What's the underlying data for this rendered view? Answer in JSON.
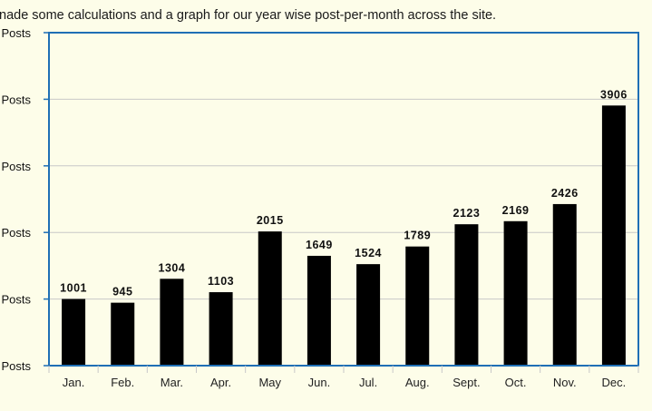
{
  "intro_text": "nade some calculations and a graph for our year wise post-per-month across the site.",
  "chart_data": {
    "type": "bar",
    "categories": [
      "Jan.",
      "Feb.",
      "Mar.",
      "Apr.",
      "May",
      "Jun.",
      "Jul.",
      "Aug.",
      "Sept.",
      "Oct.",
      "Nov.",
      "Dec."
    ],
    "values": [
      1001,
      945,
      1304,
      1103,
      2015,
      1649,
      1524,
      1789,
      2123,
      2169,
      2426,
      3906
    ],
    "data_labels": [
      "1001",
      "945",
      "1304",
      "1103",
      "2015",
      "1649",
      "1524",
      "1789",
      "2123",
      "2169",
      "2426",
      "3906"
    ],
    "ytick_labels": [
      "Posts",
      "Posts",
      "Posts",
      "Posts",
      "Posts",
      "Posts"
    ],
    "ylim": [
      0,
      5000
    ],
    "grid": true,
    "bar_color": "#000000",
    "axis_color": "#1f6fb5",
    "grid_color": "#c8c8c8"
  }
}
